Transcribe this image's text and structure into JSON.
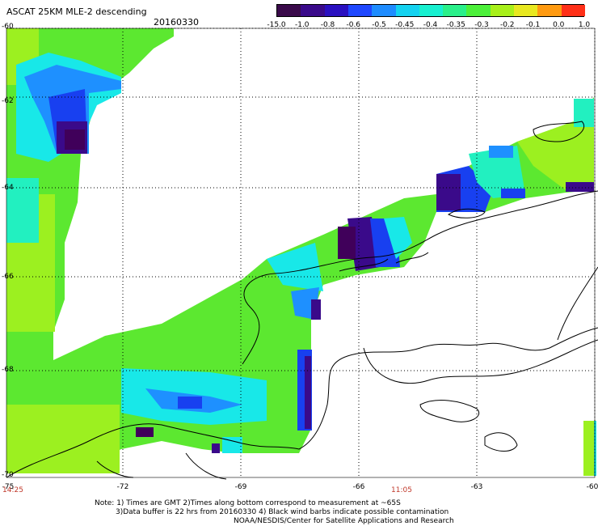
{
  "header": {
    "title": "ASCAT 25KM MLE-2 descending",
    "date": "20160330"
  },
  "colorbar": {
    "labels": [
      "-15.0",
      "-1.0",
      "-0.8",
      "-0.6",
      "-0.5",
      "-0.45",
      "-0.4",
      "-0.35",
      "-0.3",
      "-0.2",
      "-0.1",
      "0.0",
      "1.0"
    ],
    "colors": [
      "#3a0a4a",
      "#3a0a8a",
      "#2a10c0",
      "#1f48ff",
      "#1e8cff",
      "#14d2f0",
      "#18f0d0",
      "#2af08a",
      "#4cf03a",
      "#a8f01a",
      "#e8e820",
      "#ff9a10",
      "#ff3018"
    ]
  },
  "map": {
    "lat_labels": [
      "-60",
      "-62",
      "-64",
      "-66",
      "-68",
      "-70"
    ],
    "lon_labels": [
      "-75",
      "-72",
      "-69",
      "-66",
      "-63",
      "-60"
    ],
    "time_labels": [
      "14:25",
      "11:05"
    ],
    "colors": {
      "green": "#5ce830",
      "lime": "#9cf020",
      "yellowgreen": "#b8f020",
      "cyan": "#18e8e8",
      "aqua": "#22f0c0",
      "blue": "#1840f0",
      "dodger": "#1e90ff",
      "indigo": "#3a0a8a",
      "purple": "#40005a"
    }
  },
  "notes": {
    "line1": "Note: 1) Times are GMT 2)Times along bottom correspond to measurement at ~65S",
    "line2": "3)Data buffer is 22 hrs from 20160330 4) Black wind barbs indicate possible contamination",
    "line3": "NOAA/NESDIS/Center for Satellite Applications and Research"
  }
}
